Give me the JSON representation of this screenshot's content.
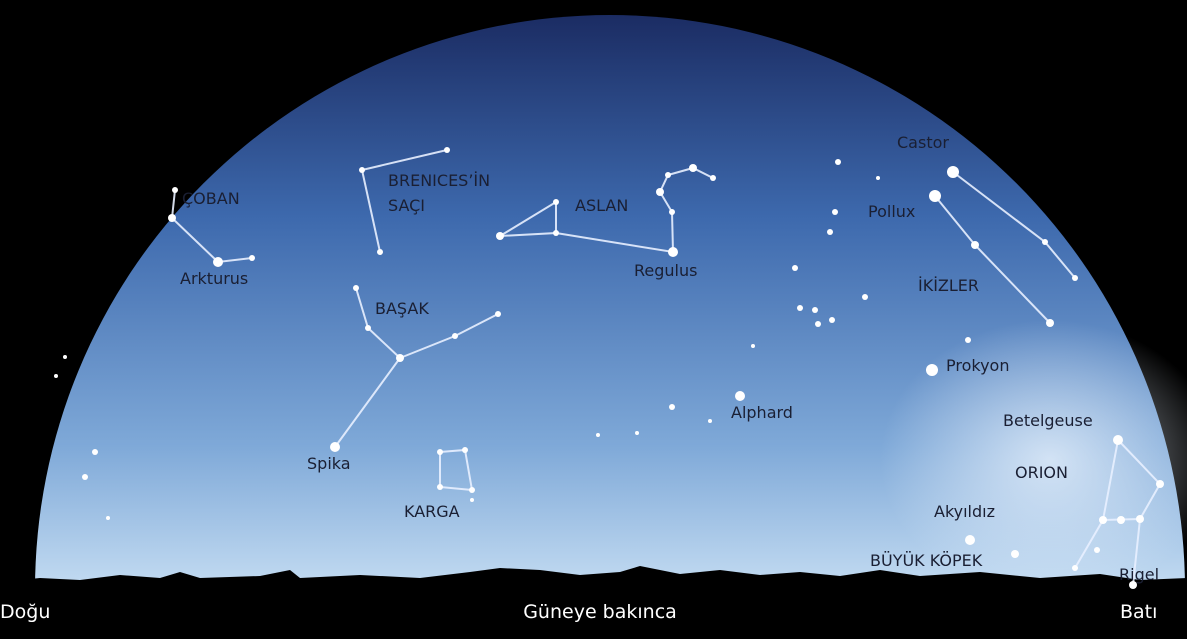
{
  "labels": {
    "coban": "ÇOBAN",
    "arkturus": "Arkturus",
    "berenice_1": "BRENICES’İN",
    "berenice_2": "SAÇI",
    "aslan": "ASLAN",
    "regulus": "Regulus",
    "basak": "BAŞAK",
    "spika": "Spika",
    "karga": "KARGA",
    "castor": "Castor",
    "pollux": "Pollux",
    "ikizler": "İKİZLER",
    "prokyon": "Prokyon",
    "alphard": "Alphard",
    "betelgeuse": "Betelgeuse",
    "orion": "ORION",
    "akyildiz": "Akyıldız",
    "buyuk_kopek": "BÜYÜK KÖPEK",
    "rigel": "Rigel"
  },
  "directions": {
    "east": "Doğu",
    "south": "Güneye bakınca",
    "west": "Batı"
  }
}
